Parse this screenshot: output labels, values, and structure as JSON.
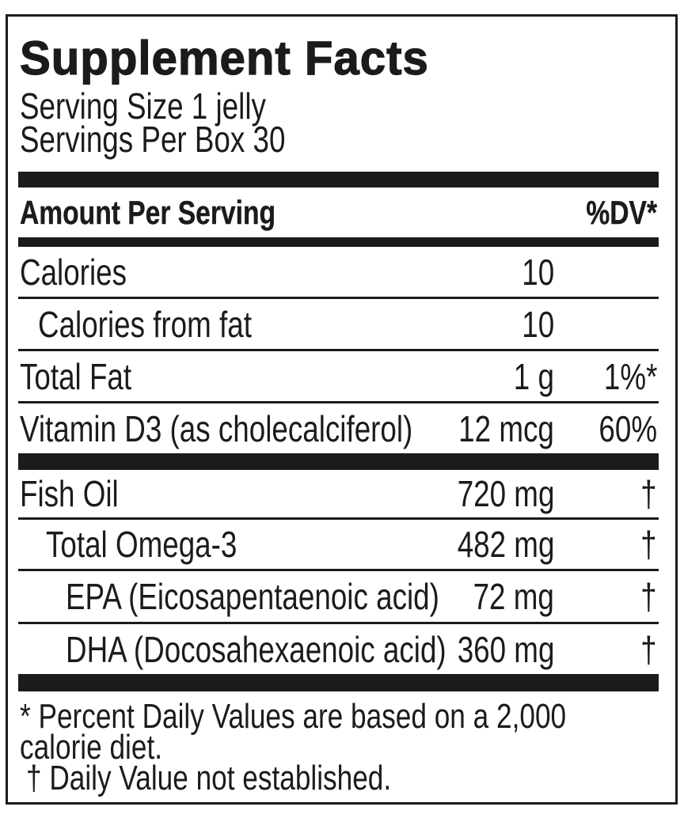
{
  "label": {
    "title": "Supplement Facts",
    "serving_size": "Serving Size 1 jelly",
    "servings_per_box": "Servings Per Box 30",
    "header": {
      "amount_per_serving": "Amount Per Serving",
      "dv": "%DV*"
    },
    "rows": [
      {
        "name": "Calories",
        "amount": "10",
        "dv": "",
        "indent": 0
      },
      {
        "name": "Calories from fat",
        "amount": "10",
        "dv": "",
        "indent": 1
      },
      {
        "name": "Total Fat",
        "amount": "1 g",
        "dv": "1%*",
        "indent": 0
      },
      {
        "name": "Vitamin D3 (as cholecalciferol)",
        "amount": "12 mcg",
        "dv": "60%",
        "indent": 0
      },
      {
        "name": "Fish Oil",
        "amount": "720 mg",
        "dv": "†",
        "indent": 0
      },
      {
        "name": "Total Omega-3",
        "amount": "482 mg",
        "dv": "†",
        "indent": 1
      },
      {
        "name": "EPA (Eicosapentaenoic acid)",
        "amount": "72 mg",
        "dv": "†",
        "indent": 2
      },
      {
        "name": "DHA (Docosahexaenoic acid)",
        "amount": "360 mg",
        "dv": "†",
        "indent": 2
      }
    ],
    "footnote": {
      "line1": "* Percent Daily Values are based on a 2,000",
      "line2": "calorie diet.",
      "line3": "† Daily Value not established."
    },
    "colors": {
      "ink": "#1b1b1b",
      "background": "#ffffff"
    }
  }
}
